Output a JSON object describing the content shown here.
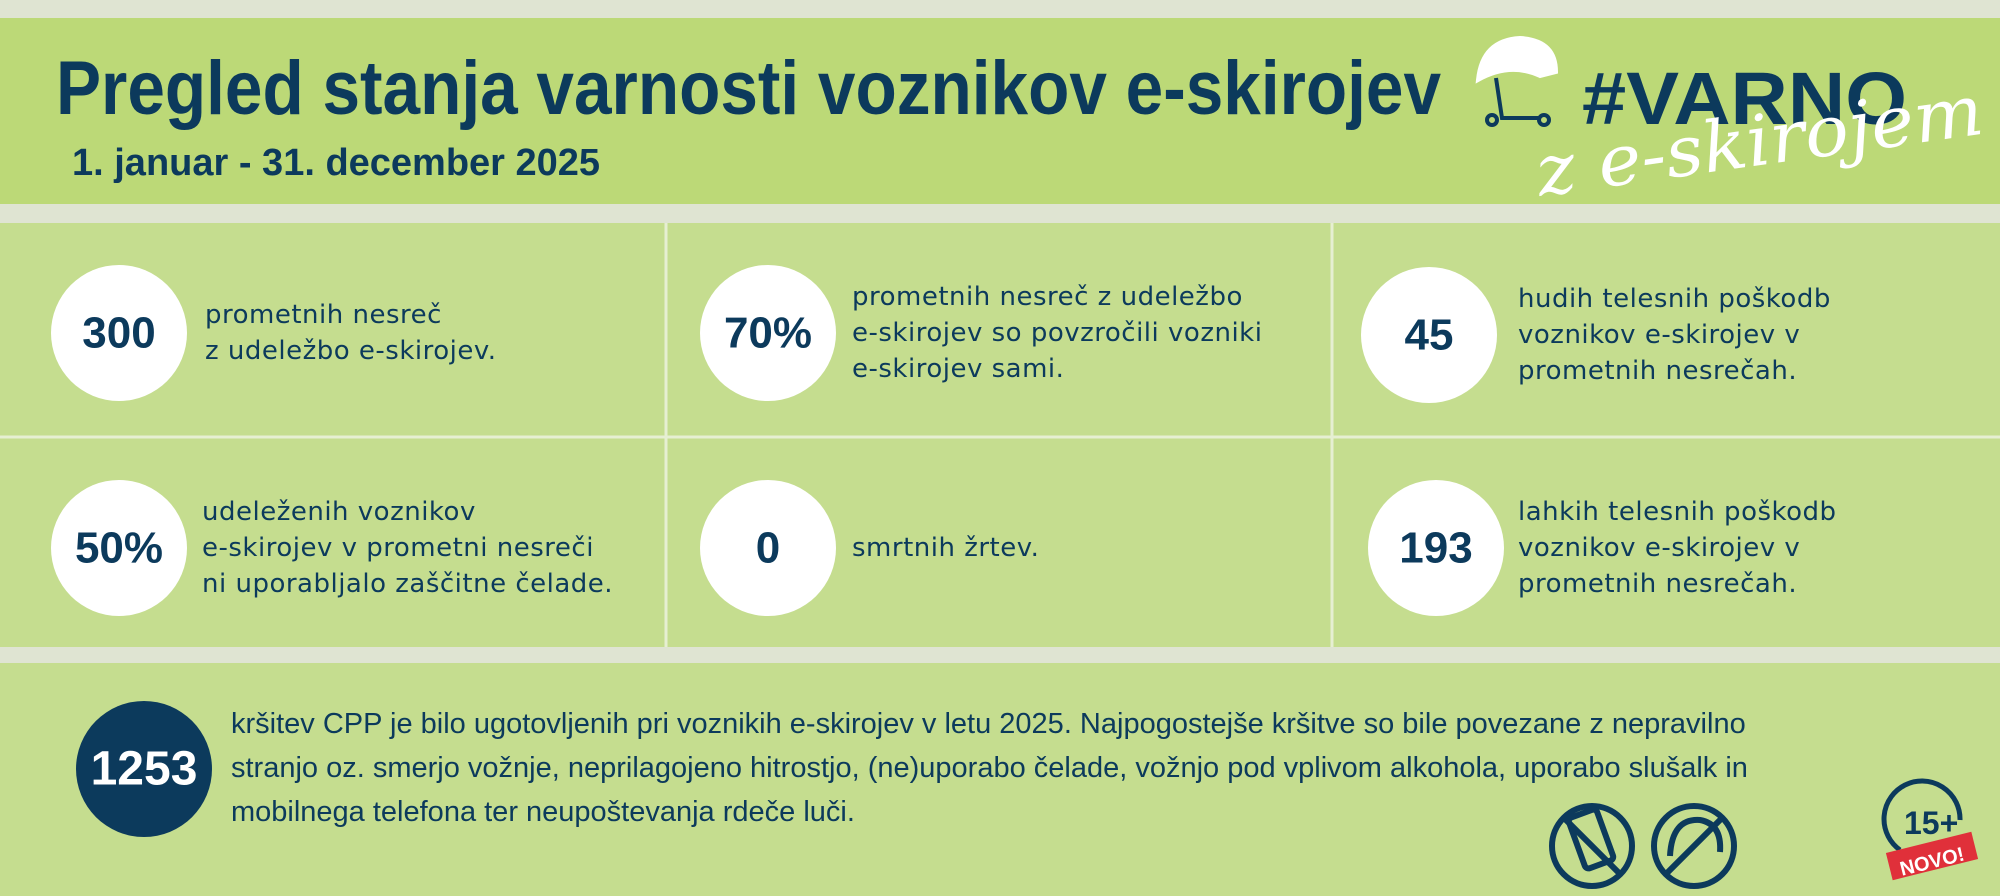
{
  "header": {
    "title": "Pregled stanja varnosti voznikov e-skirojev",
    "subtitle": "1. januar - 31. december 2025",
    "logo": {
      "hashtag": "#VARNO",
      "tagline": "z e-skirojem"
    }
  },
  "stats": [
    {
      "value": "300",
      "lines": [
        "prometnih nesreč",
        "z udeležbo e-skirojev."
      ]
    },
    {
      "value": "70%",
      "lines": [
        "prometnih nesreč z udeležbo",
        "e-skirojev so povzročili vozniki",
        "e-skirojev sami."
      ]
    },
    {
      "value": "45",
      "lines": [
        "hudih telesnih poškodb",
        "voznikov e-skirojev v",
        "prometnih nesrečah."
      ]
    },
    {
      "value": "50%",
      "lines": [
        "udeleženih voznikov",
        "e-skirojev v prometni nesreči",
        "ni uporabljalo zaščitne čelade."
      ]
    },
    {
      "value": "0",
      "lines": [
        "smrtnih žrtev."
      ]
    },
    {
      "value": "193",
      "lines": [
        "lahkih telesnih poškodb",
        "voznikov e-skirojev v",
        "prometnih nesrečah."
      ]
    }
  ],
  "summary": {
    "value": "1253",
    "lines": [
      "kršitev CPP je bilo ugotovljenih pri voznikih e-skirojev v letu 2025. Najpogostejše kršitve so bile povezane z nepravilno",
      "stranjo oz. smerjo vožnje, neprilagojeno hitrostjo, (ne)uporabo čelade, vožnjo pod vplivom alkohola, uporabo slušalk in",
      "mobilnega telefona ter neupoštevanja rdeče luči."
    ]
  },
  "badge": {
    "age": "15+",
    "tag": "NOVO!"
  }
}
